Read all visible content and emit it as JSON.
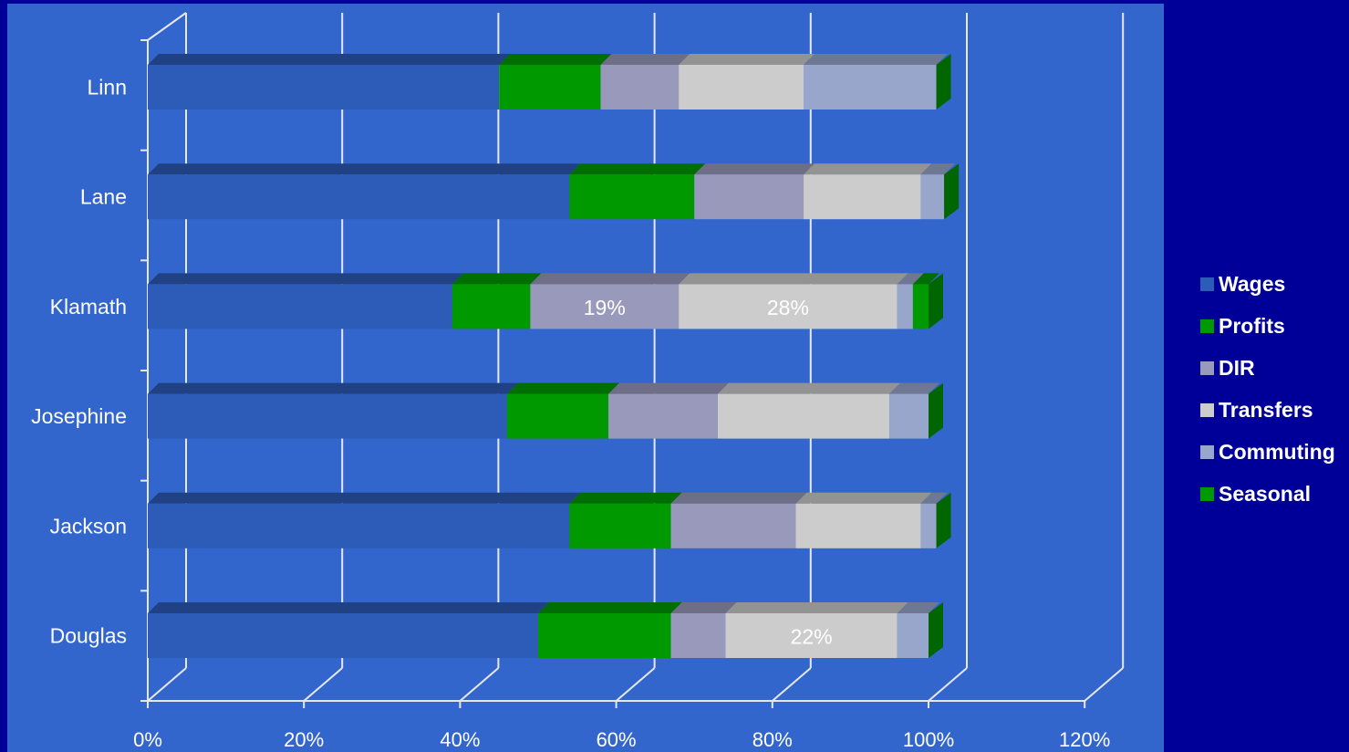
{
  "chart_data": {
    "type": "bar",
    "orientation": "horizontal",
    "stacked": true,
    "three_d": true,
    "categories": [
      "Linn",
      "Lane",
      "Klamath",
      "Josephine",
      "Jackson",
      "Douglas"
    ],
    "series": [
      {
        "name": "Wages",
        "color": "#2d5bb8",
        "values": [
          45,
          54,
          39,
          46,
          54,
          50
        ]
      },
      {
        "name": "Profits",
        "color": "#009900",
        "values": [
          13,
          16,
          10,
          13,
          13,
          17
        ]
      },
      {
        "name": "DIR",
        "color": "#9999bb",
        "values": [
          10,
          14,
          19,
          14,
          16,
          7
        ]
      },
      {
        "name": "Transfers",
        "color": "#cccccc",
        "values": [
          16,
          15,
          28,
          22,
          16,
          22
        ]
      },
      {
        "name": "Commuting",
        "color": "#99a6cc",
        "values": [
          17,
          3,
          2,
          5,
          2,
          4
        ]
      },
      {
        "name": "Seasonal",
        "color": "#009900",
        "values": [
          0,
          0,
          2,
          0,
          0,
          0
        ]
      }
    ],
    "data_labels": [
      {
        "category": "Klamath",
        "series": "DIR",
        "text": "19%"
      },
      {
        "category": "Klamath",
        "series": "Transfers",
        "text": "28%"
      },
      {
        "category": "Douglas",
        "series": "Transfers",
        "text": "22%"
      }
    ],
    "x_ticks": [
      "0%",
      "20%",
      "40%",
      "60%",
      "80%",
      "100%",
      "120%"
    ],
    "xlim": [
      0,
      120
    ],
    "grid": true,
    "legend_position": "right",
    "colors": {
      "page_background": "#000099",
      "plot_background": "#3366cc",
      "gridline": "#e8e8f0",
      "text": "#ffffff"
    }
  }
}
